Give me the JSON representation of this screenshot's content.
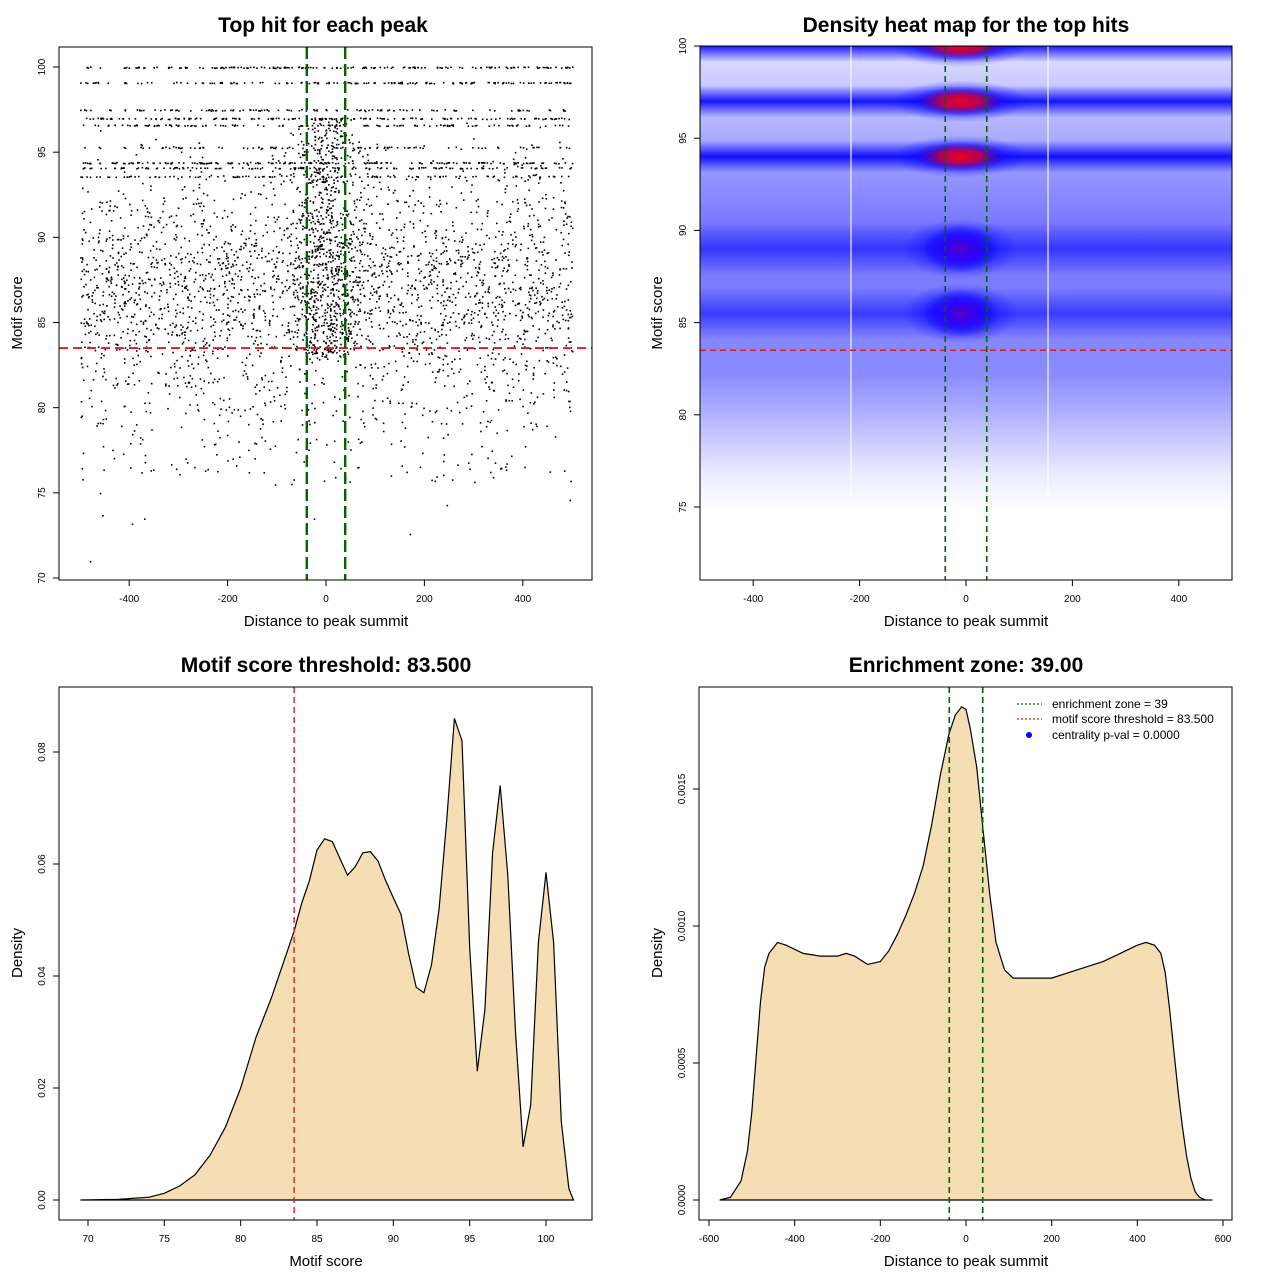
{
  "chart_data": [
    {
      "type": "scatter",
      "title": "Top hit for each peak",
      "xlabel": "Distance to peak summit",
      "ylabel": "Motif score",
      "xlim": [
        -500,
        500
      ],
      "ylim": [
        70,
        100.5
      ],
      "xticks": [
        "-400",
        "-200",
        "0",
        "200",
        "400"
      ],
      "yticks": [
        "70",
        "75",
        "80",
        "85",
        "90",
        "95",
        "100"
      ],
      "point_color": "#000000",
      "threshold_line": {
        "value": 83.5,
        "color": "#e31a1c"
      },
      "zone_lines": {
        "values": [
          -39,
          39
        ],
        "color": "#006400"
      },
      "outliers": [
        [
          -480,
          71.0
        ],
        [
          -395,
          73.2
        ],
        [
          -370,
          73.5
        ],
        [
          -455,
          73.7
        ],
        [
          170,
          72.6
        ],
        [
          -25,
          73.5
        ],
        [
          245,
          74.3
        ],
        [
          -460,
          75.0
        ],
        [
          495,
          74.6
        ]
      ]
    },
    {
      "type": "heatmap",
      "title": "Density heat map for the top hits",
      "xlabel": "Distance to peak summit",
      "ylabel": "Motif score",
      "xlim": [
        -500,
        500
      ],
      "ylim": [
        70.8,
        100
      ],
      "xticks": [
        "-400",
        "-200",
        "0",
        "200",
        "400"
      ],
      "yticks": [
        "75",
        "80",
        "85",
        "90",
        "95",
        "100"
      ],
      "low_color": "#0000ff",
      "high_color": "#ff0000",
      "bands": [
        {
          "score": 100,
          "peak": "high"
        },
        {
          "score": 97,
          "peak": "high"
        },
        {
          "score": 94,
          "peak": "high"
        },
        {
          "score": 89,
          "peak": "medium"
        },
        {
          "score": 85.5,
          "peak": "medium"
        }
      ],
      "threshold_line": {
        "value": 83.5,
        "color": "#e31a1c"
      },
      "zone_lines": {
        "values": [
          -39,
          39
        ],
        "color": "#006400"
      }
    },
    {
      "type": "area",
      "title": "Motif score threshold: 83.500",
      "xlabel": "Motif score",
      "ylabel": "Density",
      "xlim": [
        68,
        102.5
      ],
      "ylim": [
        -0.003,
        0.091
      ],
      "xticks": [
        "70",
        "75",
        "80",
        "85",
        "90",
        "95",
        "100"
      ],
      "yticks": [
        "0.00",
        "0.02",
        "0.04",
        "0.06",
        "0.08"
      ],
      "fill_color": "#f5deb3",
      "x": [
        69.5,
        72,
        74,
        75,
        76,
        77,
        78,
        79,
        80,
        81,
        82,
        83,
        83.5,
        84,
        84.5,
        85,
        85.5,
        86,
        86.5,
        87,
        87.5,
        88,
        88.5,
        89,
        89.5,
        90,
        90.5,
        91,
        91.5,
        92,
        92.5,
        93,
        93.5,
        94,
        94.5,
        95,
        95.5,
        96,
        96.5,
        97,
        97.5,
        98,
        98.5,
        99,
        99.5,
        100,
        100.5,
        101,
        101.5,
        101.8
      ],
      "y": [
        0,
        0.0001,
        0.0005,
        0.0012,
        0.0025,
        0.0045,
        0.008,
        0.013,
        0.02,
        0.029,
        0.036,
        0.044,
        0.048,
        0.053,
        0.057,
        0.0625,
        0.0645,
        0.064,
        0.061,
        0.058,
        0.0595,
        0.062,
        0.0622,
        0.0605,
        0.057,
        0.054,
        0.051,
        0.044,
        0.038,
        0.037,
        0.042,
        0.052,
        0.068,
        0.086,
        0.082,
        0.045,
        0.023,
        0.034,
        0.062,
        0.074,
        0.058,
        0.03,
        0.0095,
        0.017,
        0.046,
        0.0585,
        0.046,
        0.014,
        0.002,
        0
      ],
      "threshold_line": {
        "value": 83.5,
        "color": "#e31a1c"
      }
    },
    {
      "type": "area",
      "title": "Enrichment zone: 39.00",
      "xlabel": "Distance to peak summit",
      "ylabel": "Density",
      "xlim": [
        -610,
        620
      ],
      "ylim": [
        -5e-05,
        0.00188
      ],
      "xticks": [
        "-600",
        "-400",
        "-200",
        "0",
        "200",
        "400",
        "600"
      ],
      "yticks": [
        "0.0000",
        "0.0005",
        "0.0010",
        "0.0015"
      ],
      "fill_color": "#f5deb3",
      "x": [
        -575,
        -550,
        -525,
        -510,
        -500,
        -490,
        -480,
        -470,
        -460,
        -450,
        -440,
        -420,
        -380,
        -340,
        -300,
        -280,
        -260,
        -230,
        -200,
        -180,
        -160,
        -140,
        -120,
        -100,
        -80,
        -60,
        -40,
        -25,
        -10,
        0,
        10,
        25,
        40,
        55,
        70,
        90,
        110,
        130,
        150,
        200,
        240,
        280,
        320,
        360,
        400,
        420,
        440,
        455,
        465,
        475,
        485,
        495,
        505,
        515,
        525,
        535,
        545,
        560,
        575
      ],
      "y": [
        0,
        1e-05,
        7e-05,
        0.00018,
        0.00032,
        0.00052,
        0.00072,
        0.00085,
        0.0009,
        0.00092,
        0.00094,
        0.00093,
        0.0009,
        0.00089,
        0.00089,
        0.0009,
        0.00089,
        0.00086,
        0.00087,
        0.00091,
        0.00097,
        0.00104,
        0.00112,
        0.00122,
        0.00137,
        0.00155,
        0.0017,
        0.00177,
        0.0018,
        0.00179,
        0.00172,
        0.00158,
        0.00135,
        0.00112,
        0.00094,
        0.00084,
        0.00081,
        0.00081,
        0.00081,
        0.00081,
        0.00083,
        0.00085,
        0.00087,
        0.0009,
        0.00093,
        0.00094,
        0.00093,
        0.0009,
        0.00083,
        0.0007,
        0.00055,
        0.0004,
        0.00027,
        0.00016,
        8e-05,
        3e-05,
        1e-05,
        0,
        0
      ],
      "threshold_line": null,
      "zone_lines": {
        "values": [
          -39,
          39
        ],
        "color": "#006400"
      },
      "legend": {
        "position": "top-right",
        "entries": [
          {
            "label": "enrichment zone = 39",
            "color": "#006400",
            "style": "dotted-line"
          },
          {
            "label": "motif score threshold = 83.500",
            "color": "#e31a1c",
            "style": "dotted-line"
          },
          {
            "label": "centrality p-val = 0.0000",
            "color": "#0000ff",
            "style": "point"
          }
        ]
      }
    }
  ]
}
